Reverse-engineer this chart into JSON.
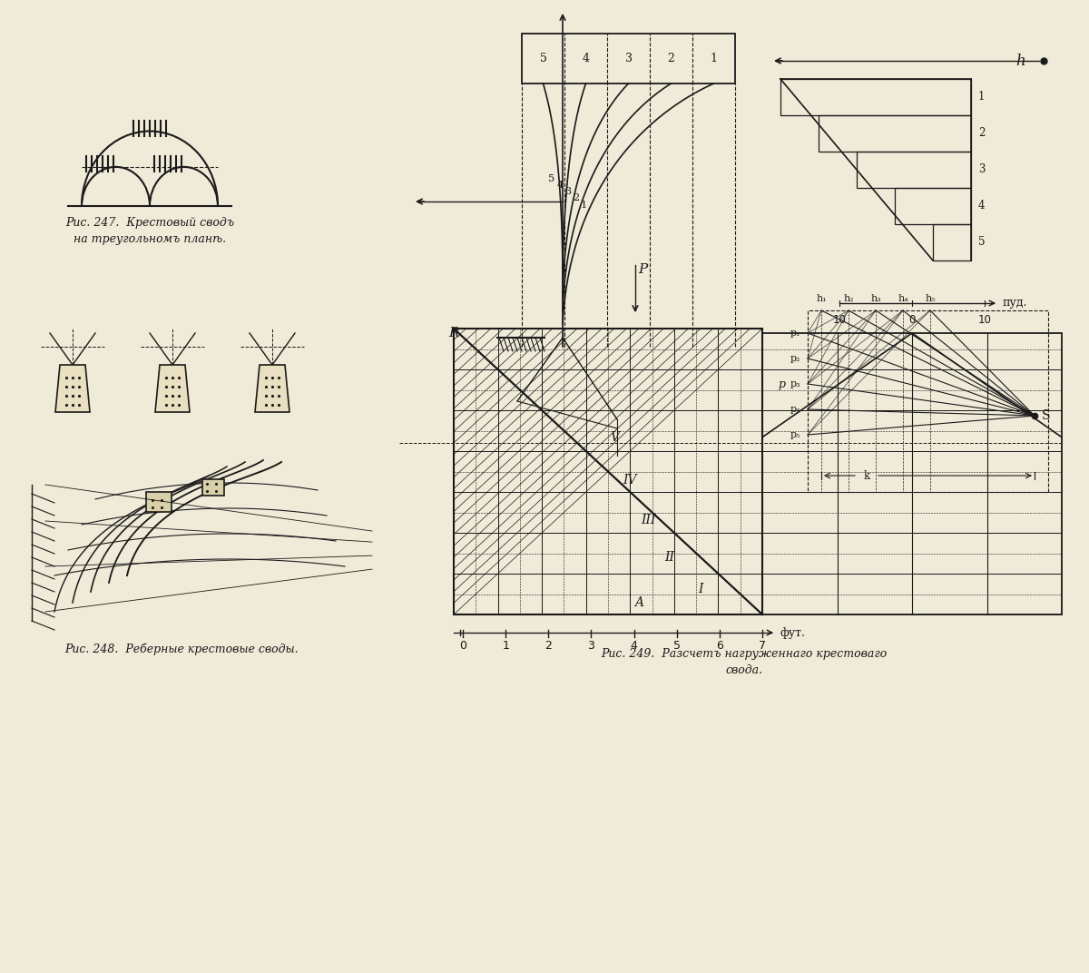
{
  "bg_color": "#f0ead8",
  "line_color": "#1a1a1a",
  "caption247": "Рис. 247.  Крестовый сводъ\nна треугольномъ планѣ.",
  "caption248": "Рис. 248.  Реберные крестовые своды.",
  "caption249": "Рис. 249.  Разсчетъ нагруженнаго крестоваго\nсвода.",
  "roman_labels": [
    "V",
    "IV",
    "III",
    "II",
    "I"
  ],
  "A_label": "A",
  "scale_foot": [
    0,
    1,
    2,
    3,
    4,
    5,
    6,
    7
  ],
  "scale_foot_label": "фут.",
  "scale_pud_label": "пуд.",
  "pud_vals": [
    "10",
    "0",
    "10"
  ],
  "h_label": "h",
  "R_label": "R",
  "P_label": "P",
  "S_label": "S",
  "nums_arch": [
    "5",
    "4",
    "3",
    "2",
    "1"
  ],
  "nums_trap": [
    "1",
    "2",
    "3",
    "4",
    "5"
  ],
  "p_labels": [
    "p₁",
    "p₂",
    "p₃",
    "p₄",
    "p₅"
  ],
  "h_labels": [
    "h₁",
    "h₂",
    "h₃",
    "h₄",
    "h₅"
  ]
}
